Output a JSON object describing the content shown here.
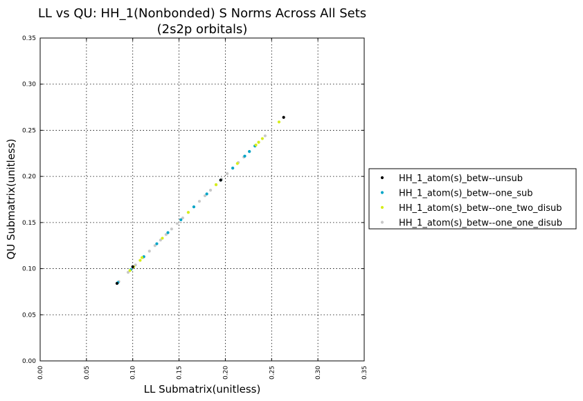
{
  "chart_data": {
    "type": "scatter",
    "title": "LL vs QU: HH_1(Nonbonded) S Norms Across All Sets",
    "subtitle": "(2s2p orbitals)",
    "xlabel": "LL Submatrix(unitless)",
    "ylabel": "QU Submatrix(unitless)",
    "xlim": [
      0.0,
      0.35
    ],
    "ylim": [
      0.0,
      0.35
    ],
    "xticks": [
      "0.00",
      "0.05",
      "0.10",
      "0.15",
      "0.20",
      "0.25",
      "0.30",
      "0.35"
    ],
    "yticks": [
      "0.00",
      "0.05",
      "0.10",
      "0.15",
      "0.20",
      "0.25",
      "0.30",
      "0.35"
    ],
    "grid": true,
    "legend_position": "right",
    "series": [
      {
        "name": "HH_1_atom(s)_betw--unsub",
        "color": "#000000",
        "points": [
          [
            0.083,
            0.084
          ],
          [
            0.1,
            0.102
          ],
          [
            0.195,
            0.196
          ],
          [
            0.263,
            0.264
          ]
        ]
      },
      {
        "name": "HH_1_atom(s)_betw--one_sub",
        "color": "#00a5c8",
        "points": [
          [
            0.084,
            0.085
          ],
          [
            0.098,
            0.099
          ],
          [
            0.112,
            0.113
          ],
          [
            0.126,
            0.127
          ],
          [
            0.138,
            0.139
          ],
          [
            0.152,
            0.153
          ],
          [
            0.166,
            0.167
          ],
          [
            0.18,
            0.181
          ],
          [
            0.195,
            0.196
          ],
          [
            0.208,
            0.209
          ],
          [
            0.221,
            0.222
          ],
          [
            0.226,
            0.227
          ],
          [
            0.232,
            0.233
          ]
        ]
      },
      {
        "name": "HH_1_atom(s)_betw--one_two_disub",
        "color": "#d6ee1a",
        "points": [
          [
            0.097,
            0.098
          ],
          [
            0.101,
            0.102
          ],
          [
            0.108,
            0.109
          ],
          [
            0.11,
            0.112
          ],
          [
            0.132,
            0.133
          ],
          [
            0.16,
            0.161
          ],
          [
            0.19,
            0.191
          ],
          [
            0.213,
            0.214
          ],
          [
            0.233,
            0.234
          ],
          [
            0.236,
            0.237
          ],
          [
            0.24,
            0.241
          ],
          [
            0.258,
            0.259
          ]
        ]
      },
      {
        "name": "HH_1_atom(s)_betw--one_one_disub",
        "color": "#c8c8c8",
        "points": [
          [
            0.085,
            0.086
          ],
          [
            0.095,
            0.096
          ],
          [
            0.103,
            0.104
          ],
          [
            0.111,
            0.112
          ],
          [
            0.118,
            0.119
          ],
          [
            0.124,
            0.125
          ],
          [
            0.13,
            0.131
          ],
          [
            0.136,
            0.137
          ],
          [
            0.142,
            0.143
          ],
          [
            0.148,
            0.149
          ],
          [
            0.154,
            0.155
          ],
          [
            0.16,
            0.161
          ],
          [
            0.166,
            0.167
          ],
          [
            0.172,
            0.173
          ],
          [
            0.178,
            0.179
          ],
          [
            0.184,
            0.185
          ],
          [
            0.19,
            0.191
          ],
          [
            0.196,
            0.197
          ],
          [
            0.202,
            0.203
          ],
          [
            0.208,
            0.209
          ],
          [
            0.214,
            0.215
          ],
          [
            0.22,
            0.221
          ],
          [
            0.226,
            0.227
          ],
          [
            0.232,
            0.233
          ],
          [
            0.236,
            0.237
          ],
          [
            0.243,
            0.244
          ]
        ]
      }
    ]
  }
}
